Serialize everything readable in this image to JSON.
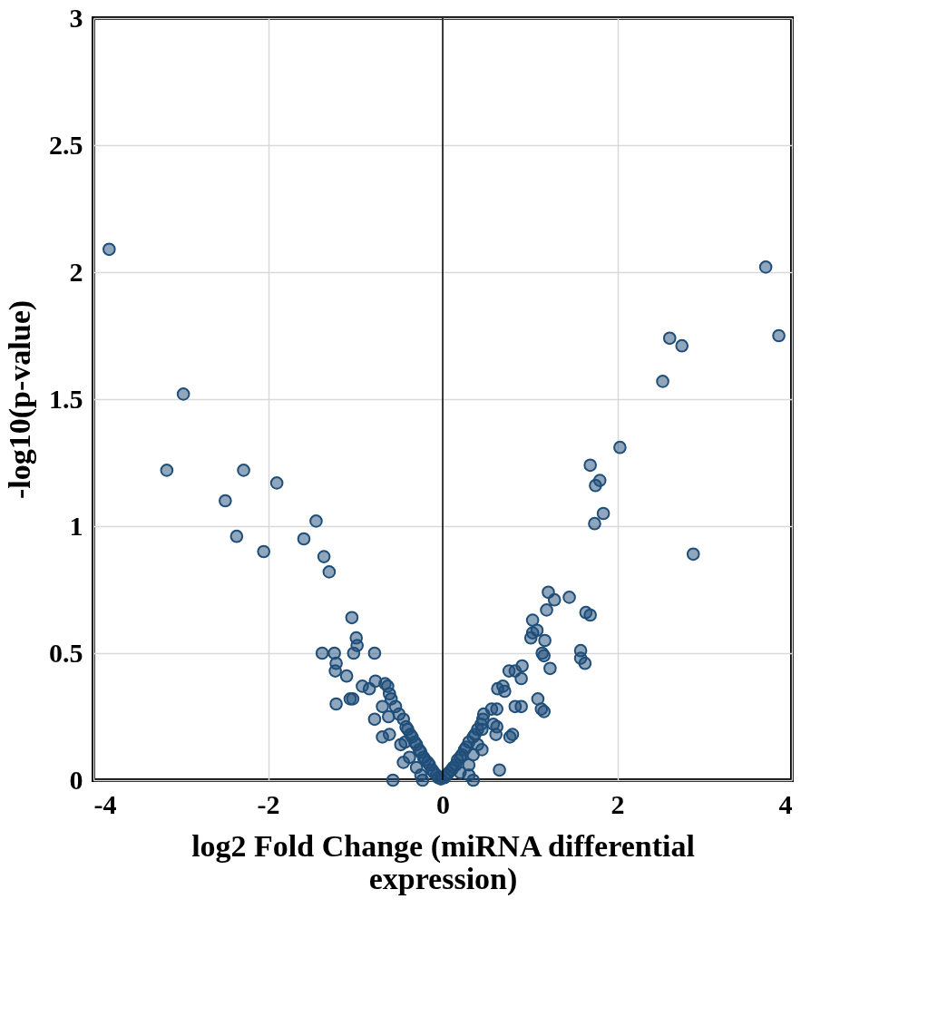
{
  "chart_data": {
    "type": "scatter",
    "xlabel": "log2 Fold Change (miRNA differential expression)",
    "ylabel": "-log10(p-value)",
    "xlim": [
      -4,
      4
    ],
    "xticks": [
      -4,
      -2,
      0,
      2,
      4
    ],
    "ylim": [
      0,
      3
    ],
    "yticks": [
      0,
      0.5,
      1,
      1.5,
      2,
      2.5,
      3
    ],
    "grid": true,
    "marker": "circle",
    "ref_lines": [
      {
        "axis": "x",
        "value": 0,
        "color": "#000000"
      }
    ],
    "series": [
      {
        "color": "#1f4e79",
        "x": [
          -3.82,
          -2.97,
          -3.16,
          -2.28,
          -1.9,
          -2.49,
          -2.36,
          -2.05,
          -1.45,
          -1.59,
          -1.36,
          -1.3,
          -1.04,
          -0.99,
          -0.98,
          -1.38,
          -1.24,
          -1.22,
          -1.23,
          -1.02,
          -0.78,
          -1.1,
          -0.92,
          -0.77,
          -0.84,
          -1.22,
          -1.06,
          -1.03,
          -0.78,
          -0.69,
          -0.61,
          -0.57,
          -0.23,
          -0.66,
          -0.63,
          -0.61,
          -0.69,
          -0.62,
          -0.59,
          -0.54,
          -0.5,
          -0.45,
          -0.42,
          -0.4,
          -0.37,
          -0.35,
          -0.32,
          -0.3,
          -0.27,
          -0.25,
          -0.22,
          -0.2,
          -0.17,
          -0.15,
          -0.12,
          -0.1,
          -0.07,
          -0.05,
          -0.02,
          -0.45,
          -0.38,
          -0.3,
          -0.25,
          -0.43,
          -0.48,
          3.7,
          3.85,
          2.6,
          2.74,
          2.52,
          2.03,
          1.69,
          1.8,
          1.75,
          1.84,
          1.74,
          2.87,
          1.21,
          1.45,
          1.28,
          1.19,
          1.64,
          1.69,
          1.03,
          1.08,
          1.03,
          1.01,
          1.17,
          1.58,
          1.58,
          1.63,
          1.14,
          1.16,
          1.23,
          0.91,
          0.83,
          0.76,
          0.9,
          1.09,
          1.13,
          1.16,
          0.63,
          0.69,
          0.71,
          0.56,
          0.62,
          0.83,
          0.9,
          0.47,
          0.58,
          0.62,
          0.61,
          0.77,
          0.8,
          0.65,
          0.35,
          0.46,
          0.44,
          0.45,
          0.4,
          0.37,
          0.35,
          0.3,
          0.27,
          0.25,
          0.22,
          0.2,
          0.17,
          0.15,
          0.12,
          0.1,
          0.07,
          0.05,
          0.02,
          0.35,
          0.3,
          0.2,
          0.4,
          0.45,
          0.3
        ],
        "values": [
          2.09,
          1.52,
          1.22,
          1.22,
          1.17,
          1.1,
          0.96,
          0.9,
          1.02,
          0.95,
          0.88,
          0.82,
          0.64,
          0.56,
          0.53,
          0.5,
          0.5,
          0.46,
          0.43,
          0.5,
          0.5,
          0.41,
          0.37,
          0.39,
          0.36,
          0.3,
          0.32,
          0.32,
          0.24,
          0.17,
          0.18,
          0.0,
          0.0,
          0.38,
          0.37,
          0.34,
          0.29,
          0.25,
          0.32,
          0.29,
          0.26,
          0.24,
          0.21,
          0.2,
          0.18,
          0.17,
          0.15,
          0.14,
          0.12,
          0.11,
          0.09,
          0.08,
          0.07,
          0.06,
          0.04,
          0.03,
          0.02,
          0.01,
          0.005,
          0.07,
          0.09,
          0.05,
          0.02,
          0.15,
          0.14,
          2.02,
          1.75,
          1.74,
          1.71,
          1.57,
          1.31,
          1.24,
          1.18,
          1.16,
          1.05,
          1.01,
          0.89,
          0.74,
          0.72,
          0.71,
          0.67,
          0.66,
          0.65,
          0.63,
          0.59,
          0.58,
          0.56,
          0.55,
          0.51,
          0.48,
          0.46,
          0.5,
          0.49,
          0.44,
          0.45,
          0.43,
          0.43,
          0.4,
          0.32,
          0.28,
          0.27,
          0.36,
          0.37,
          0.35,
          0.28,
          0.28,
          0.29,
          0.29,
          0.26,
          0.22,
          0.21,
          0.18,
          0.17,
          0.18,
          0.04,
          0.0,
          0.24,
          0.22,
          0.2,
          0.2,
          0.18,
          0.17,
          0.15,
          0.13,
          0.12,
          0.1,
          0.09,
          0.08,
          0.06,
          0.05,
          0.04,
          0.03,
          0.02,
          0.01,
          0.1,
          0.06,
          0.03,
          0.14,
          0.12,
          0.02
        ]
      }
    ]
  }
}
